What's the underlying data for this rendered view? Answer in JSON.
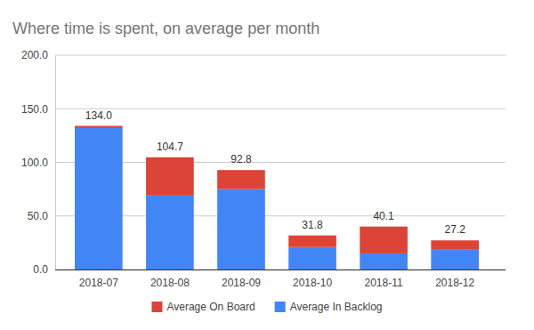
{
  "chart_data": {
    "type": "bar",
    "title": "Where time is spent, on average per month",
    "categories": [
      "2018-07",
      "2018-08",
      "2018-09",
      "2018-10",
      "2018-11",
      "2018-12"
    ],
    "series": [
      {
        "name": "Average In Backlog",
        "color": "#4285f4",
        "values": [
          132,
          69,
          75,
          21,
          15,
          19
        ]
      },
      {
        "name": "Average On Board",
        "color": "#db4437",
        "values": [
          2,
          35.7,
          17.8,
          10.8,
          25.1,
          8.2
        ]
      }
    ],
    "totals": [
      134,
      104.7,
      92.8,
      31.8,
      40.1,
      27.2
    ],
    "total_labels": [
      "134.0",
      "104.7",
      "92.8",
      "31.8",
      "40.1",
      "27.2"
    ],
    "stacked": true,
    "ylim": [
      0,
      200
    ],
    "yticks": [
      {
        "value": 0,
        "label": "0.0"
      },
      {
        "value": 50,
        "label": "50.0"
      },
      {
        "value": 100,
        "label": "100.0"
      },
      {
        "value": 150,
        "label": "150.0"
      },
      {
        "value": 200,
        "label": "200.0"
      }
    ],
    "grid": true,
    "legend": "bottom"
  }
}
